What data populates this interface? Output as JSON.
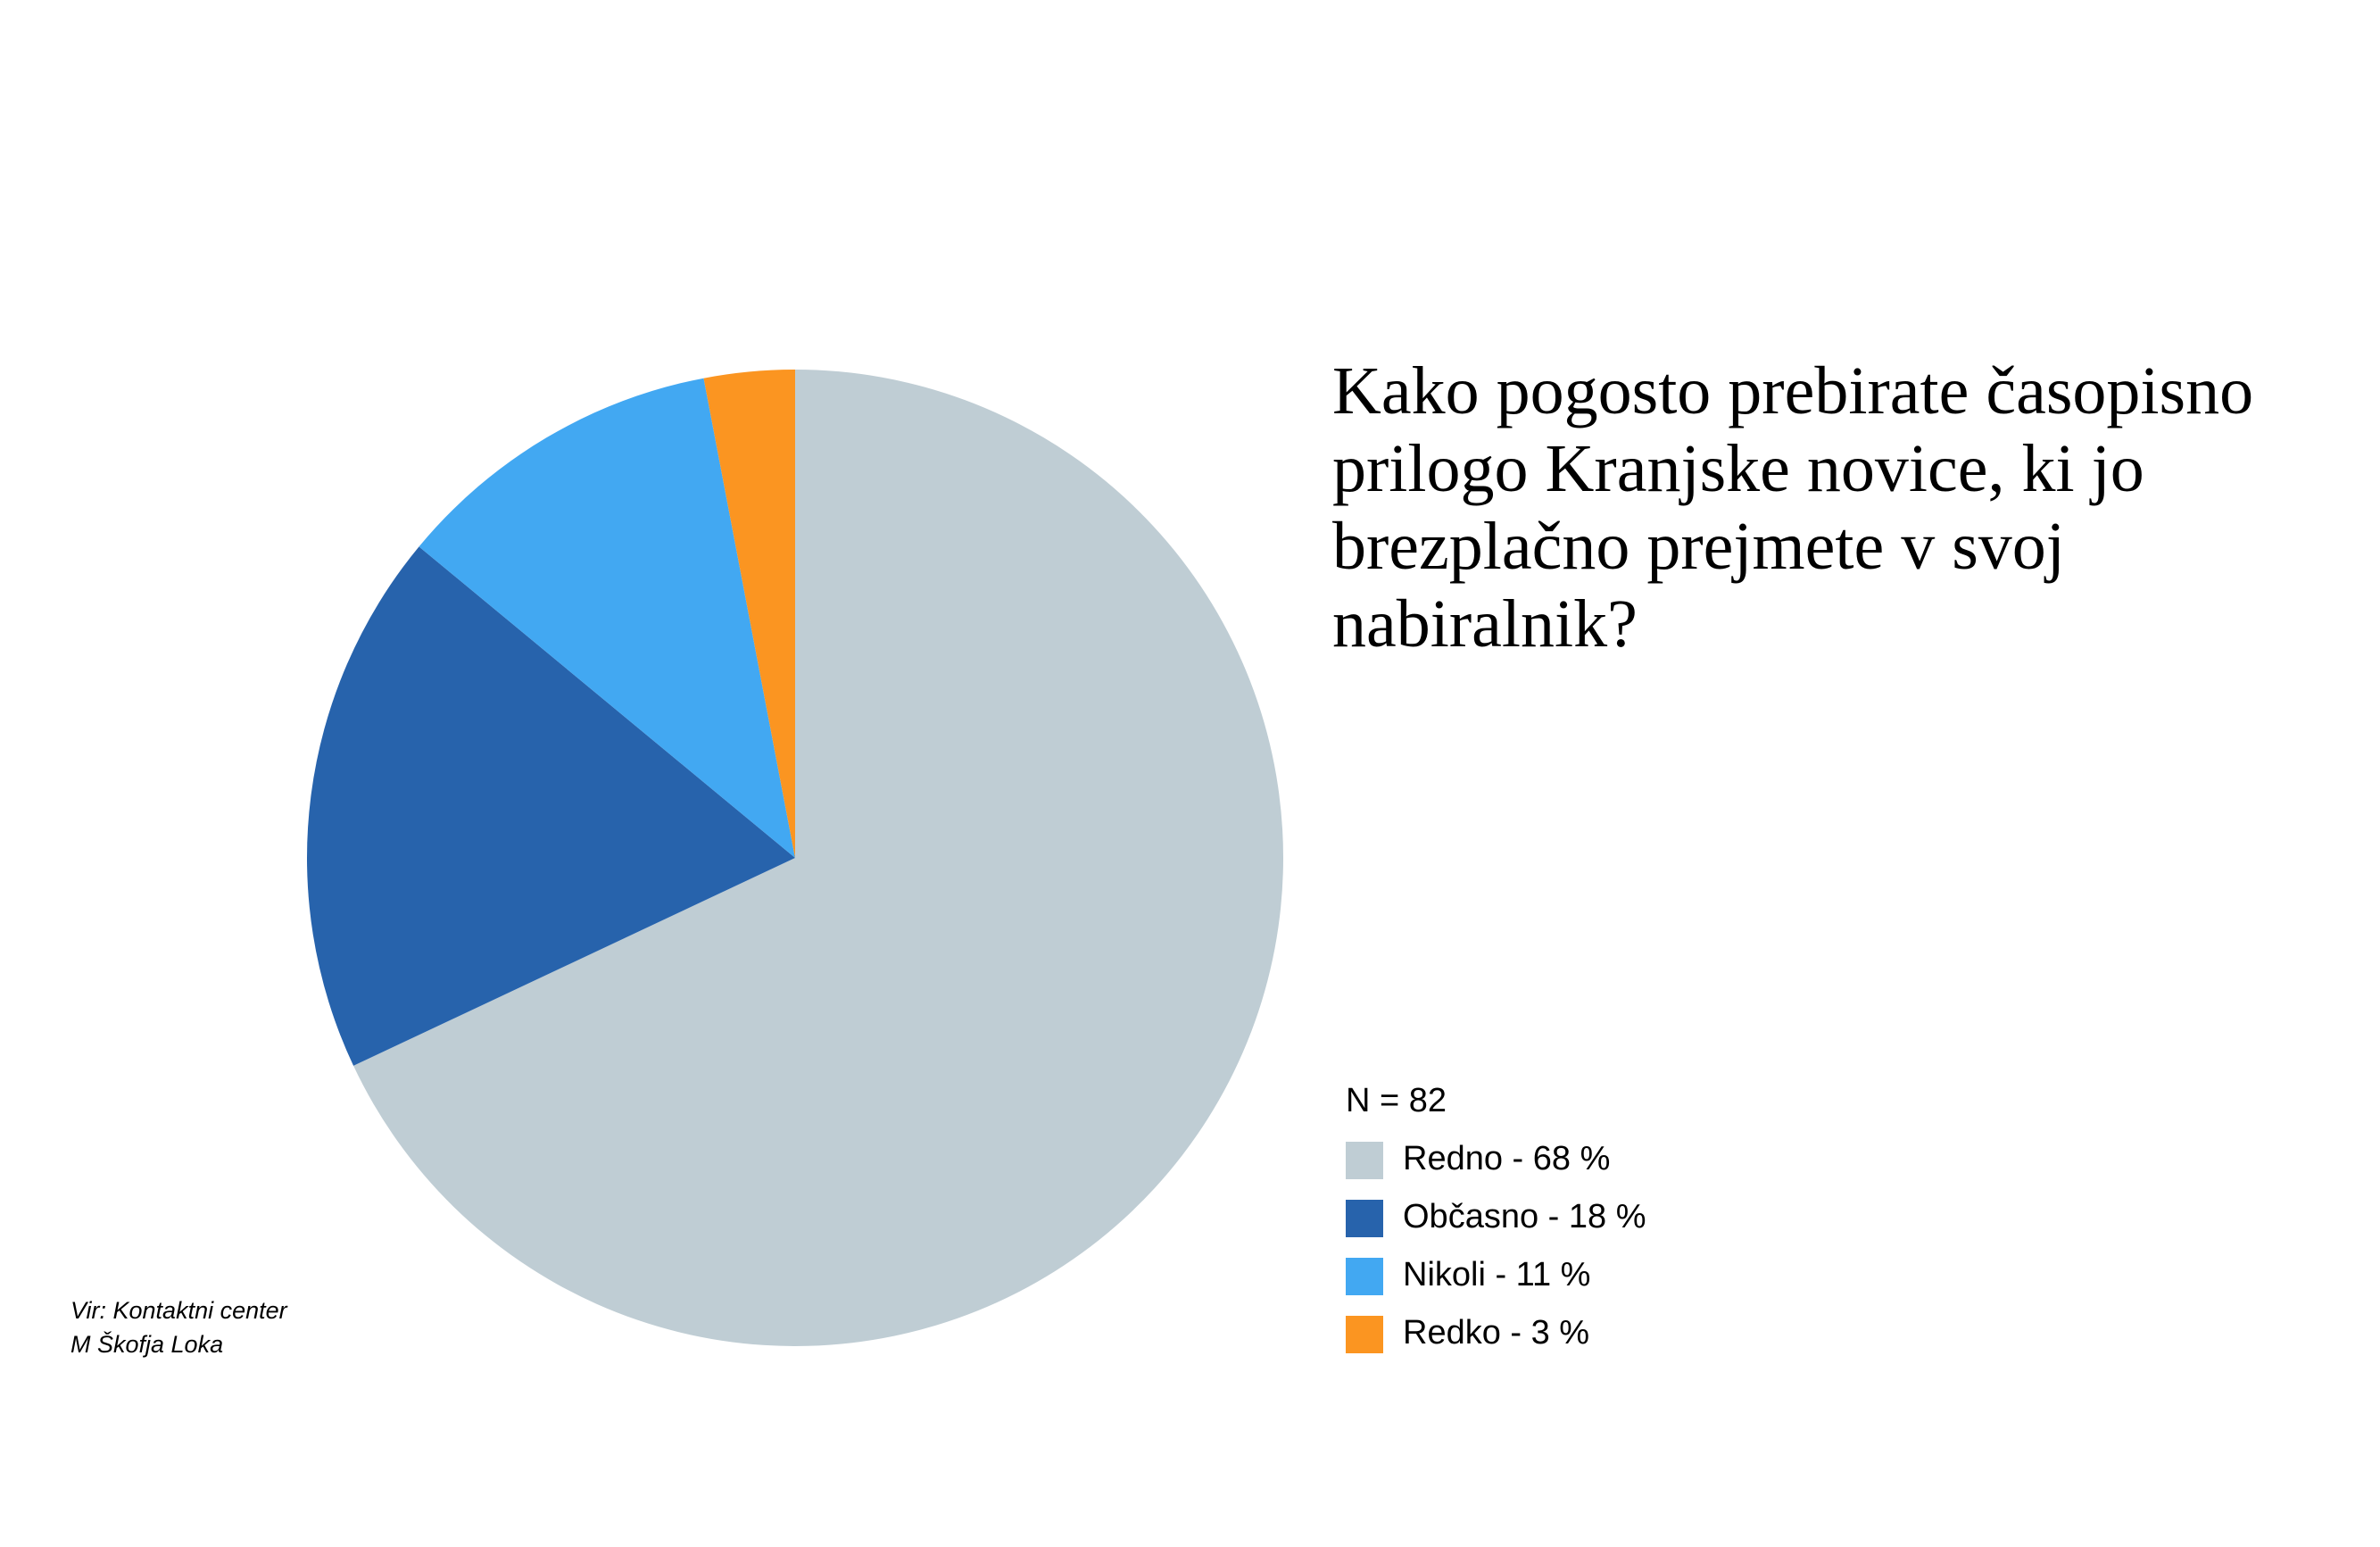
{
  "chart_data": {
    "type": "pie",
    "title": "Kako pogosto prebirate časopisno prilogo Kranjske novice, ki jo brezplačno prejmete v svoj nabiralnik?",
    "note": "N = 82",
    "source": [
      "Vir: Kontaktni center",
      "M Škofja Loka"
    ],
    "categories": [
      "Redno - 68 %",
      "Občasno - 18 %",
      "Nikoli - 11 %",
      "Redko - 3 %"
    ],
    "values": [
      68,
      18,
      11,
      3
    ],
    "colors": [
      "#bfcdd4",
      "#2763ac",
      "#42a8f2",
      "#fb9521"
    ]
  }
}
